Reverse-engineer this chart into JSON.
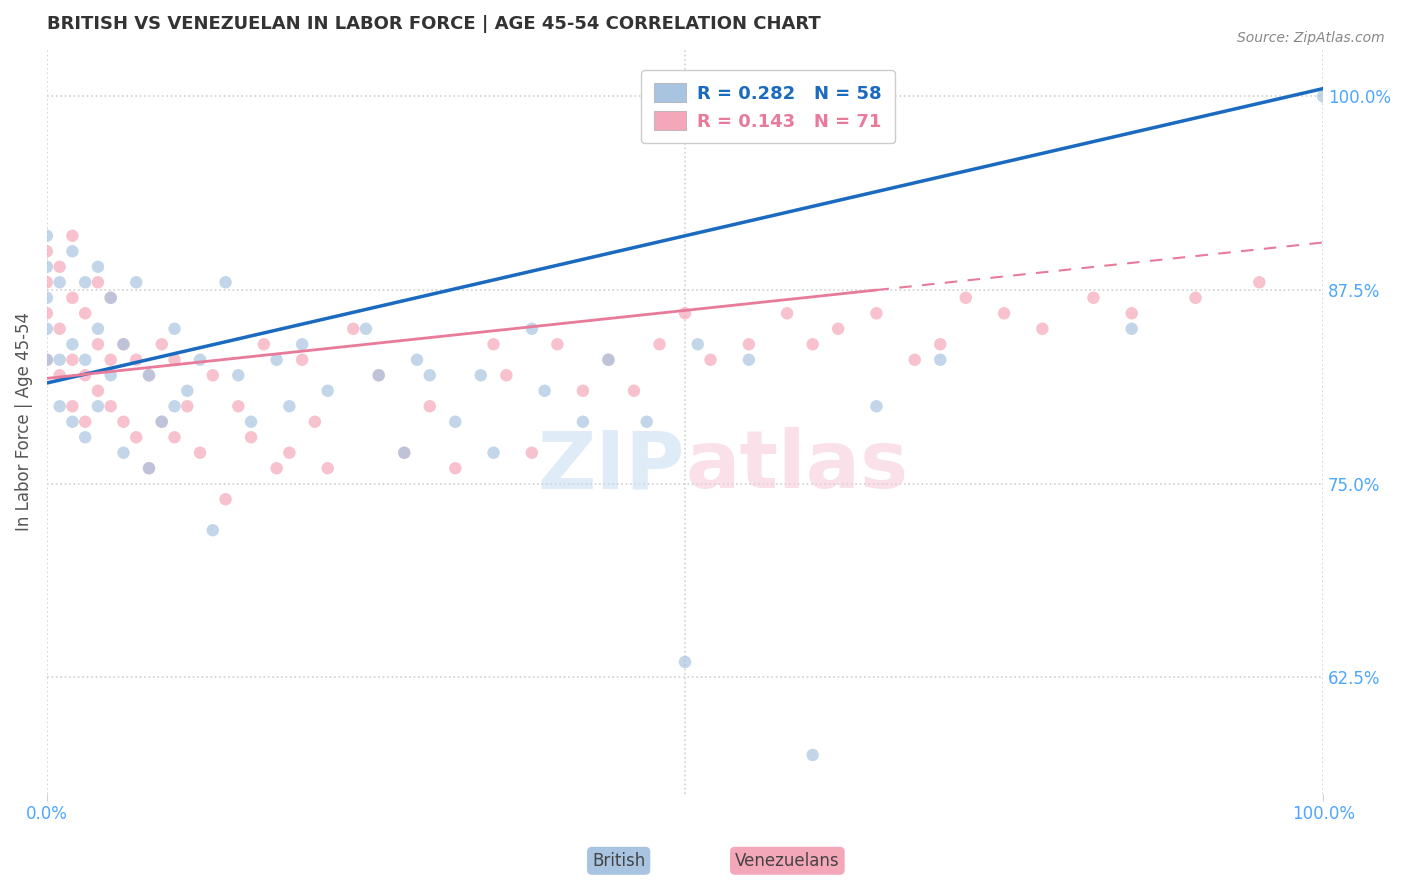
{
  "title": "BRITISH VS VENEZUELAN IN LABOR FORCE | AGE 45-54 CORRELATION CHART",
  "source": "Source: ZipAtlas.com",
  "ylabel": "In Labor Force | Age 45-54",
  "xlim": [
    0.0,
    1.0
  ],
  "ylim": [
    0.55,
    1.03
  ],
  "y_tick_values": [
    0.625,
    0.75,
    0.875,
    1.0
  ],
  "legend_r_british": "R = 0.282",
  "legend_n_british": "N = 58",
  "legend_r_venezuelan": "R = 0.143",
  "legend_n_venezuelan": "N = 71",
  "british_color": "#a8c4e0",
  "venezuelan_color": "#f4a7b9",
  "british_line_color": "#1a6bbf",
  "venezuelan_line_color": "#e87a9a",
  "british_x": [
    0.0,
    0.0,
    0.0,
    0.0,
    0.0,
    0.01,
    0.01,
    0.01,
    0.02,
    0.02,
    0.02,
    0.03,
    0.03,
    0.03,
    0.04,
    0.04,
    0.04,
    0.05,
    0.05,
    0.06,
    0.06,
    0.07,
    0.08,
    0.08,
    0.09,
    0.1,
    0.1,
    0.11,
    0.12,
    0.13,
    0.14,
    0.15,
    0.16,
    0.18,
    0.19,
    0.2,
    0.22,
    0.25,
    0.26,
    0.28,
    0.29,
    0.3,
    0.32,
    0.34,
    0.35,
    0.38,
    0.39,
    0.42,
    0.44,
    0.47,
    0.5,
    0.51,
    0.55,
    0.6,
    0.65,
    0.7,
    0.85,
    1.0
  ],
  "british_y": [
    0.83,
    0.85,
    0.87,
    0.89,
    0.91,
    0.8,
    0.83,
    0.88,
    0.79,
    0.84,
    0.9,
    0.78,
    0.83,
    0.88,
    0.8,
    0.85,
    0.89,
    0.82,
    0.87,
    0.77,
    0.84,
    0.88,
    0.76,
    0.82,
    0.79,
    0.8,
    0.85,
    0.81,
    0.83,
    0.72,
    0.88,
    0.82,
    0.79,
    0.83,
    0.8,
    0.84,
    0.81,
    0.85,
    0.82,
    0.77,
    0.83,
    0.82,
    0.79,
    0.82,
    0.77,
    0.85,
    0.81,
    0.79,
    0.83,
    0.79,
    0.635,
    0.84,
    0.83,
    0.575,
    0.8,
    0.83,
    0.85,
    1.0
  ],
  "venezuelan_x": [
    0.0,
    0.0,
    0.0,
    0.0,
    0.01,
    0.01,
    0.01,
    0.02,
    0.02,
    0.02,
    0.02,
    0.03,
    0.03,
    0.03,
    0.04,
    0.04,
    0.04,
    0.05,
    0.05,
    0.05,
    0.06,
    0.06,
    0.07,
    0.07,
    0.08,
    0.08,
    0.09,
    0.09,
    0.1,
    0.1,
    0.11,
    0.12,
    0.13,
    0.14,
    0.15,
    0.16,
    0.17,
    0.18,
    0.19,
    0.2,
    0.21,
    0.22,
    0.24,
    0.26,
    0.28,
    0.3,
    0.32,
    0.35,
    0.36,
    0.38,
    0.4,
    0.42,
    0.44,
    0.46,
    0.48,
    0.5,
    0.52,
    0.55,
    0.58,
    0.6,
    0.62,
    0.65,
    0.68,
    0.7,
    0.72,
    0.75,
    0.78,
    0.82,
    0.85,
    0.9,
    0.95
  ],
  "venezuelan_y": [
    0.83,
    0.86,
    0.88,
    0.9,
    0.82,
    0.85,
    0.89,
    0.8,
    0.83,
    0.87,
    0.91,
    0.79,
    0.82,
    0.86,
    0.81,
    0.84,
    0.88,
    0.8,
    0.83,
    0.87,
    0.79,
    0.84,
    0.78,
    0.83,
    0.76,
    0.82,
    0.79,
    0.84,
    0.78,
    0.83,
    0.8,
    0.77,
    0.82,
    0.74,
    0.8,
    0.78,
    0.84,
    0.76,
    0.77,
    0.83,
    0.79,
    0.76,
    0.85,
    0.82,
    0.77,
    0.8,
    0.76,
    0.84,
    0.82,
    0.77,
    0.84,
    0.81,
    0.83,
    0.81,
    0.84,
    0.86,
    0.83,
    0.84,
    0.86,
    0.84,
    0.85,
    0.86,
    0.83,
    0.84,
    0.87,
    0.86,
    0.85,
    0.87,
    0.86,
    0.87,
    0.88
  ],
  "background_color": "#ffffff",
  "grid_color": "#d0d0d0",
  "title_color": "#333333",
  "axis_color": "#4da6ff",
  "marker_size": 80,
  "marker_alpha": 0.7,
  "british_trend_y_start": 0.815,
  "british_trend_y_end": 1.005,
  "venezuelan_trend_y_start": 0.818,
  "venezuelan_trend_y_end": 0.875,
  "venezuelan_trend_x_end": 0.65
}
